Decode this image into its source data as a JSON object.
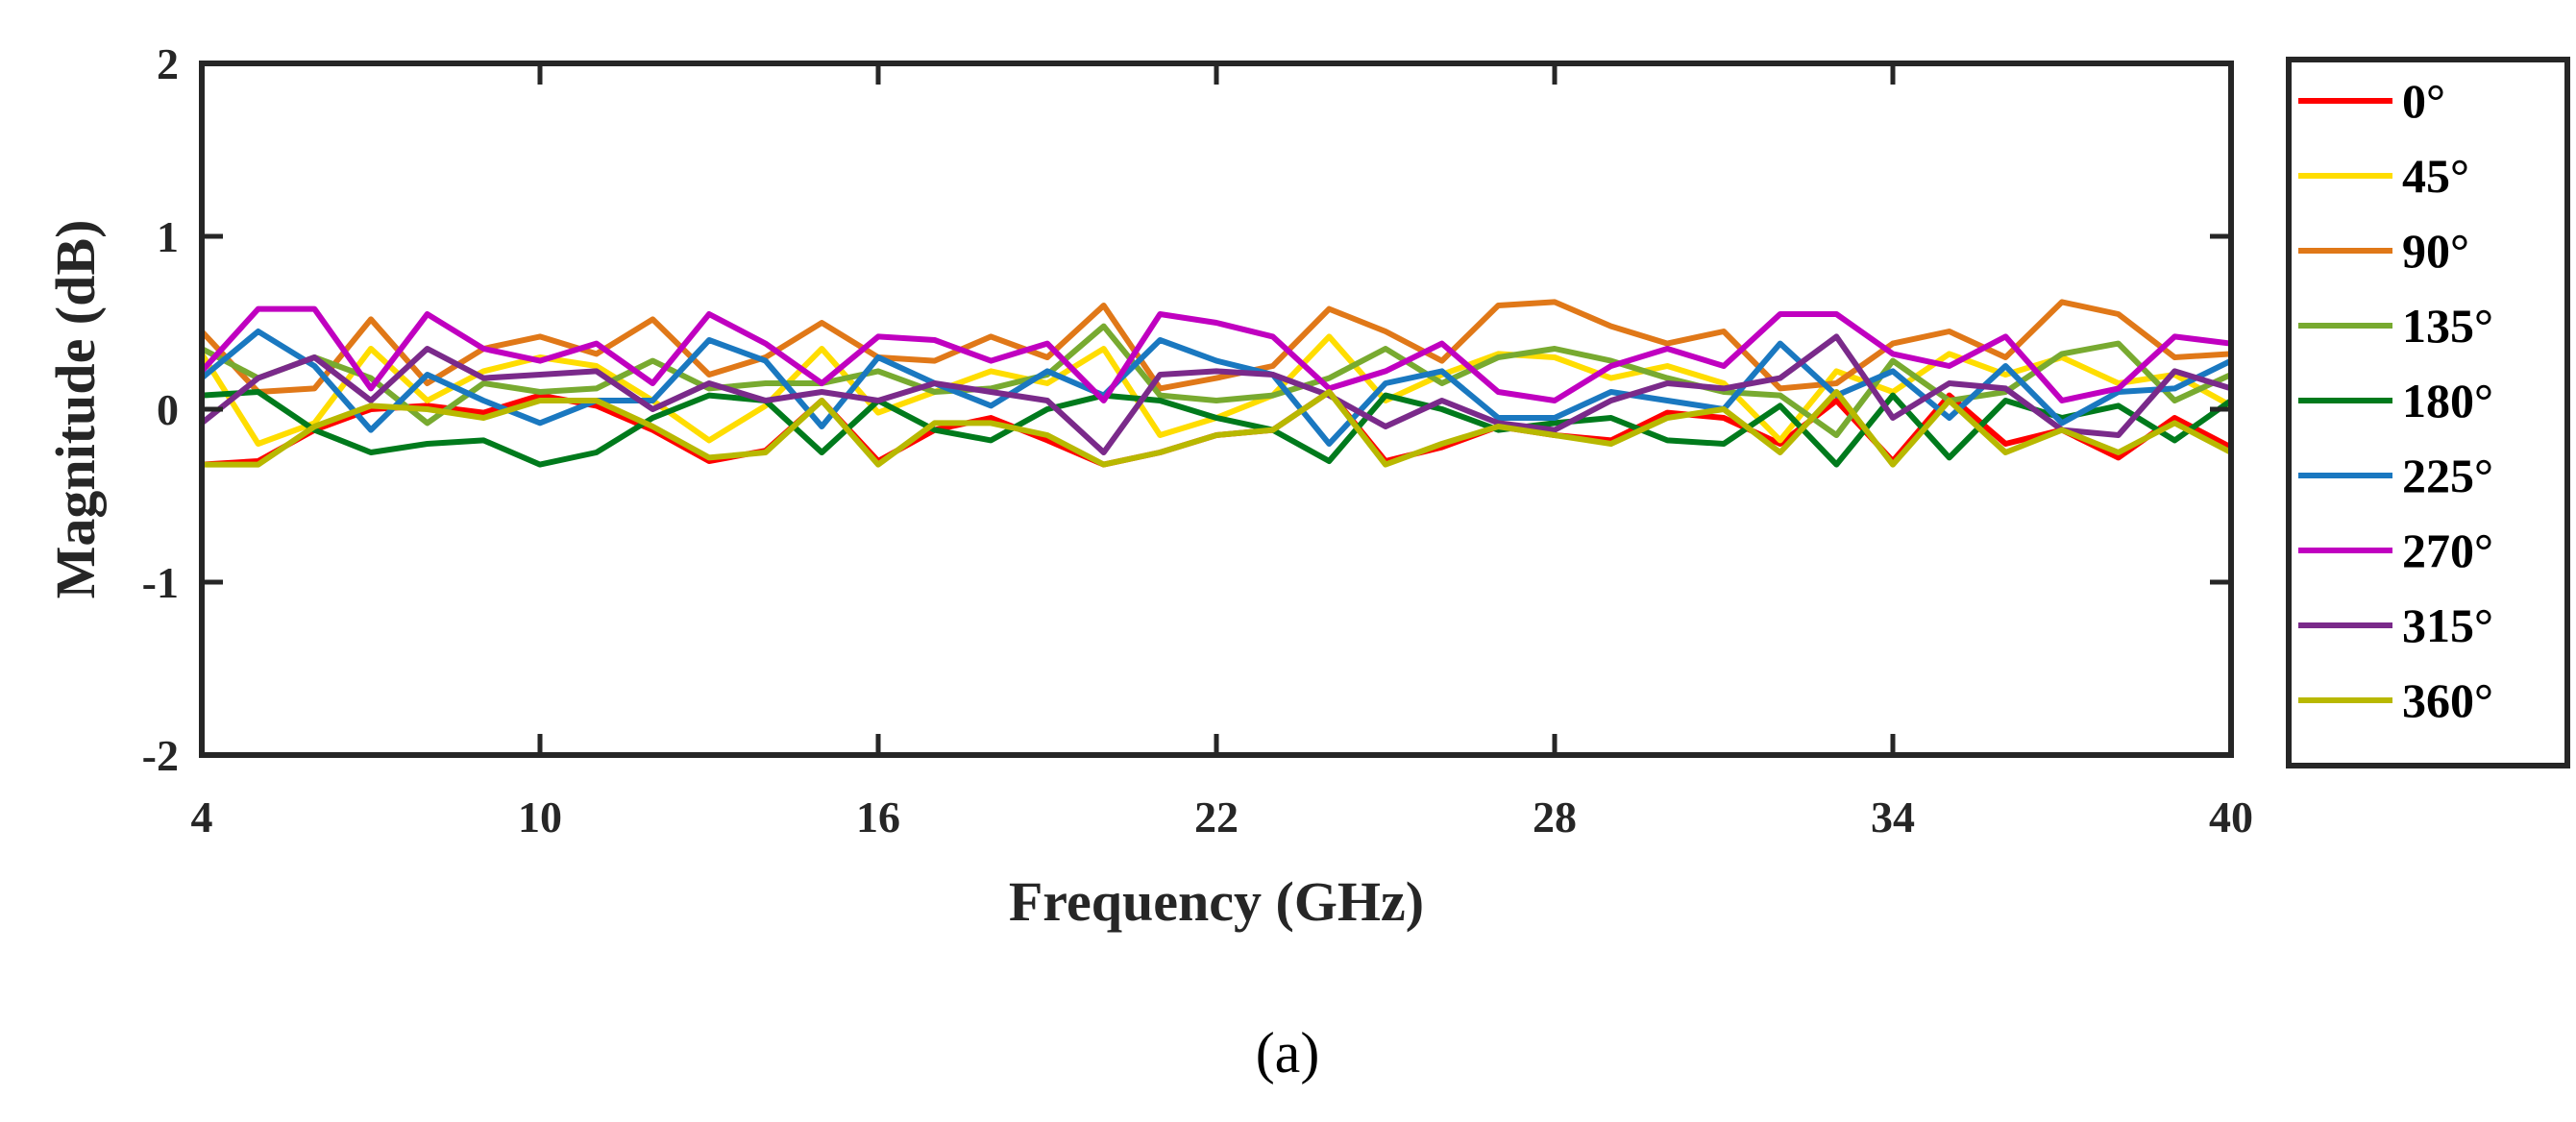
{
  "chart_data": {
    "type": "line",
    "title": "",
    "xlabel": "Frequency (GHz)",
    "ylabel": "Magnitude (dB)",
    "xlim": [
      4,
      40
    ],
    "ylim": [
      -2,
      2
    ],
    "xticks": [
      4,
      10,
      16,
      22,
      28,
      34,
      40
    ],
    "yticks": [
      -2,
      -1,
      0,
      1,
      2
    ],
    "grid": false,
    "legend_position": "outside-right",
    "caption": "(a)",
    "x": [
      4,
      5,
      6,
      7,
      8,
      9,
      10,
      11,
      12,
      13,
      14,
      15,
      16,
      17,
      18,
      19,
      20,
      21,
      22,
      23,
      24,
      25,
      26,
      27,
      28,
      29,
      30,
      31,
      32,
      33,
      34,
      35,
      36,
      37,
      38,
      39,
      40
    ],
    "series": [
      {
        "name": "0°",
        "color": "#ff0000",
        "values": [
          -0.32,
          -0.3,
          -0.12,
          0.0,
          0.02,
          -0.02,
          0.08,
          0.02,
          -0.12,
          -0.3,
          -0.24,
          0.05,
          -0.3,
          -0.12,
          -0.05,
          -0.18,
          -0.32,
          -0.25,
          -0.15,
          -0.12,
          0.1,
          -0.3,
          -0.22,
          -0.1,
          -0.15,
          -0.18,
          -0.02,
          -0.05,
          -0.2,
          0.05,
          -0.3,
          0.08,
          -0.2,
          -0.12,
          -0.28,
          -0.05,
          -0.22
        ]
      },
      {
        "name": "45°",
        "color": "#ffdd00",
        "values": [
          0.32,
          -0.2,
          -0.08,
          0.35,
          0.05,
          0.22,
          0.3,
          0.25,
          0.05,
          -0.18,
          0.02,
          0.35,
          -0.02,
          0.1,
          0.22,
          0.15,
          0.35,
          -0.15,
          -0.05,
          0.08,
          0.42,
          0.05,
          0.2,
          0.32,
          0.3,
          0.18,
          0.25,
          0.15,
          -0.18,
          0.22,
          0.1,
          0.32,
          0.2,
          0.3,
          0.15,
          0.2,
          0.02
        ]
      },
      {
        "name": "90°",
        "color": "#e07818",
        "values": [
          0.45,
          0.1,
          0.12,
          0.52,
          0.15,
          0.35,
          0.42,
          0.32,
          0.52,
          0.2,
          0.3,
          0.5,
          0.3,
          0.28,
          0.42,
          0.3,
          0.6,
          0.12,
          0.18,
          0.25,
          0.58,
          0.45,
          0.28,
          0.6,
          0.62,
          0.48,
          0.38,
          0.45,
          0.12,
          0.15,
          0.38,
          0.45,
          0.3,
          0.62,
          0.55,
          0.3,
          0.32
        ]
      },
      {
        "name": "135°",
        "color": "#78aa30",
        "values": [
          0.35,
          0.18,
          0.3,
          0.18,
          -0.08,
          0.15,
          0.1,
          0.12,
          0.28,
          0.12,
          0.15,
          0.15,
          0.22,
          0.1,
          0.12,
          0.2,
          0.48,
          0.08,
          0.05,
          0.08,
          0.18,
          0.35,
          0.15,
          0.3,
          0.35,
          0.28,
          0.18,
          0.1,
          0.08,
          -0.15,
          0.28,
          0.05,
          0.1,
          0.32,
          0.38,
          0.05,
          0.2
        ]
      },
      {
        "name": "180°",
        "color": "#007a1c",
        "values": [
          0.08,
          0.1,
          -0.12,
          -0.25,
          -0.2,
          -0.18,
          -0.32,
          -0.25,
          -0.05,
          0.08,
          0.05,
          -0.25,
          0.05,
          -0.12,
          -0.18,
          0.0,
          0.08,
          0.05,
          -0.05,
          -0.12,
          -0.3,
          0.08,
          0.0,
          -0.12,
          -0.08,
          -0.05,
          -0.18,
          -0.2,
          0.02,
          -0.32,
          0.08,
          -0.28,
          0.05,
          -0.05,
          0.02,
          -0.18,
          0.05
        ]
      },
      {
        "name": "225°",
        "color": "#1a78c0",
        "values": [
          0.18,
          0.45,
          0.25,
          -0.12,
          0.2,
          0.05,
          -0.08,
          0.05,
          0.05,
          0.4,
          0.28,
          -0.1,
          0.3,
          0.15,
          0.02,
          0.22,
          0.08,
          0.4,
          0.28,
          0.2,
          -0.2,
          0.15,
          0.22,
          -0.05,
          -0.05,
          0.1,
          0.05,
          0.0,
          0.38,
          0.08,
          0.22,
          -0.05,
          0.25,
          -0.08,
          0.1,
          0.12,
          0.28
        ]
      },
      {
        "name": "270°",
        "color": "#c000c0",
        "values": [
          0.22,
          0.58,
          0.58,
          0.12,
          0.55,
          0.35,
          0.28,
          0.38,
          0.15,
          0.55,
          0.38,
          0.15,
          0.42,
          0.4,
          0.28,
          0.38,
          0.05,
          0.55,
          0.5,
          0.42,
          0.12,
          0.22,
          0.38,
          0.1,
          0.05,
          0.25,
          0.35,
          0.25,
          0.55,
          0.55,
          0.32,
          0.25,
          0.42,
          0.05,
          0.12,
          0.42,
          0.38
        ]
      },
      {
        "name": "315°",
        "color": "#7a2a8a",
        "values": [
          -0.08,
          0.18,
          0.3,
          0.05,
          0.35,
          0.18,
          0.2,
          0.22,
          0.0,
          0.15,
          0.05,
          0.1,
          0.05,
          0.15,
          0.1,
          0.05,
          -0.25,
          0.2,
          0.22,
          0.2,
          0.08,
          -0.1,
          0.05,
          -0.08,
          -0.12,
          0.05,
          0.15,
          0.12,
          0.18,
          0.42,
          -0.05,
          0.15,
          0.12,
          -0.12,
          -0.15,
          0.22,
          0.12
        ]
      },
      {
        "name": "360°",
        "color": "#b8b800",
        "values": [
          -0.32,
          -0.32,
          -0.1,
          0.02,
          0.0,
          -0.05,
          0.05,
          0.05,
          -0.1,
          -0.28,
          -0.25,
          0.05,
          -0.32,
          -0.08,
          -0.08,
          -0.15,
          -0.32,
          -0.25,
          -0.15,
          -0.12,
          0.1,
          -0.32,
          -0.2,
          -0.1,
          -0.15,
          -0.2,
          -0.05,
          0.0,
          -0.25,
          0.1,
          -0.32,
          0.05,
          -0.25,
          -0.12,
          -0.25,
          -0.08,
          -0.25
        ]
      }
    ]
  }
}
